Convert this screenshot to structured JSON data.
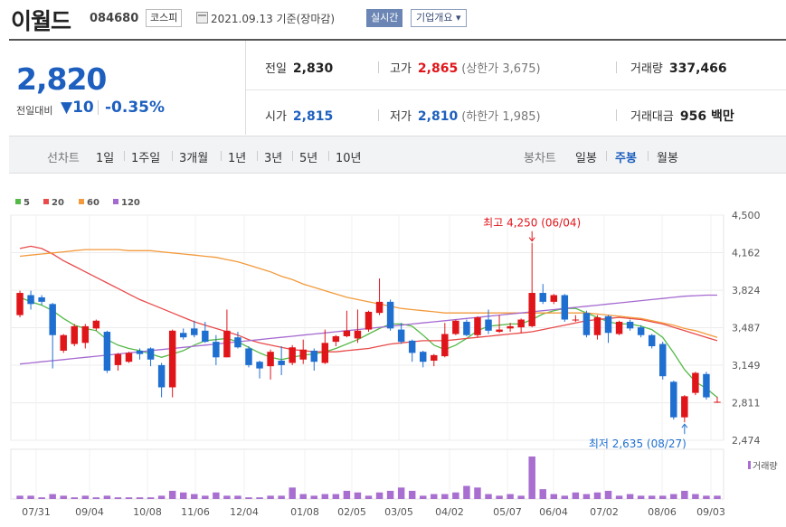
{
  "header": {
    "name": "이월드",
    "code": "084680",
    "market": "코스피",
    "date": "2021.09.13",
    "date_suffix": "기준(장마감)",
    "realtime": "실시간",
    "company_info": "기업개요 ▾"
  },
  "quote": {
    "price": "2,820",
    "diff_label": "전일대비",
    "diff_value": "▼10",
    "diff_pct": "-0.35%",
    "prev_label": "전일",
    "prev_value": "2,830",
    "high_label": "고가",
    "high_value": "2,865",
    "upper_label": "(상한가",
    "upper_value": "3,675)",
    "volume_label": "거래량",
    "volume_value": "337,466",
    "open_label": "시가",
    "open_value": "2,815",
    "low_label": "저가",
    "low_value": "2,810",
    "lower_label": "(하한가",
    "lower_value": "1,985)",
    "amount_label": "거래대금",
    "amount_value": "956 백만"
  },
  "tabs": {
    "line_chart": "선차트",
    "periods": [
      "1일",
      "1주일",
      "3개월",
      "1년",
      "3년",
      "5년",
      "10년"
    ],
    "candle_chart": "봉차트",
    "candle_periods": [
      "일봉",
      "주봉",
      "월봉"
    ],
    "active_candle": "주봉"
  },
  "chart_data": {
    "type": "candlestick",
    "legend": [
      {
        "name": "5",
        "color": "#55b947"
      },
      {
        "name": "20",
        "color": "#e94b4b"
      },
      {
        "name": "60",
        "color": "#f39a3c"
      },
      {
        "name": "120",
        "color": "#a56ad0"
      }
    ],
    "y_ticks": [
      "4,500",
      "4,162",
      "3,824",
      "3,487",
      "3,149",
      "2,811",
      "2,474"
    ],
    "ylim": [
      2474,
      4500
    ],
    "x_labels": [
      "07/31",
      "09/04",
      "10/08",
      "11/06",
      "12/04",
      "01/08",
      "02/05",
      "03/05",
      "04/02",
      "05/07",
      "06/04",
      "07/02",
      "08/06",
      "09/03"
    ],
    "annotation_high": "최고 4,250 (06/04)",
    "annotation_low": "최저 2,635 (08/27)",
    "volume_label": "거래량",
    "candles": [
      {
        "o": 3600,
        "c": 3800,
        "h": 3820,
        "l": 3580
      },
      {
        "o": 3780,
        "c": 3700,
        "h": 3820,
        "l": 3650
      },
      {
        "o": 3760,
        "c": 3720,
        "h": 3780,
        "l": 3690
      },
      {
        "o": 3700,
        "c": 3420,
        "h": 3710,
        "l": 3120
      },
      {
        "o": 3280,
        "c": 3420,
        "h": 3430,
        "l": 3260
      },
      {
        "o": 3340,
        "c": 3500,
        "h": 3520,
        "l": 3320
      },
      {
        "o": 3350,
        "c": 3500,
        "h": 3520,
        "l": 3300
      },
      {
        "o": 3480,
        "c": 3550,
        "h": 3560,
        "l": 3460
      },
      {
        "o": 3450,
        "c": 3100,
        "h": 3460,
        "l": 3080
      },
      {
        "o": 3150,
        "c": 3250,
        "h": 3260,
        "l": 3100
      },
      {
        "o": 3180,
        "c": 3260,
        "h": 3270,
        "l": 3170
      },
      {
        "o": 3280,
        "c": 3250,
        "h": 3300,
        "l": 3200
      },
      {
        "o": 3300,
        "c": 3200,
        "h": 3310,
        "l": 3140
      },
      {
        "o": 3150,
        "c": 2950,
        "h": 3170,
        "l": 2860
      },
      {
        "o": 2950,
        "c": 3460,
        "h": 3470,
        "l": 2860
      },
      {
        "o": 3440,
        "c": 3400,
        "h": 3480,
        "l": 3380
      },
      {
        "o": 3480,
        "c": 3420,
        "h": 3550,
        "l": 3400
      },
      {
        "o": 3460,
        "c": 3360,
        "h": 3540,
        "l": 3350
      },
      {
        "o": 3360,
        "c": 3220,
        "h": 3420,
        "l": 3150
      },
      {
        "o": 3220,
        "c": 3460,
        "h": 3650,
        "l": 3220
      },
      {
        "o": 3400,
        "c": 3310,
        "h": 3450,
        "l": 3300
      },
      {
        "o": 3300,
        "c": 3150,
        "h": 3320,
        "l": 3130
      },
      {
        "o": 3180,
        "c": 3120,
        "h": 3190,
        "l": 3030
      },
      {
        "o": 3140,
        "c": 3270,
        "h": 3290,
        "l": 3020
      },
      {
        "o": 3190,
        "c": 3150,
        "h": 3320,
        "l": 3060
      },
      {
        "o": 3170,
        "c": 3310,
        "h": 3330,
        "l": 3150
      },
      {
        "o": 3200,
        "c": 3290,
        "h": 3380,
        "l": 3160
      },
      {
        "o": 3280,
        "c": 3180,
        "h": 3300,
        "l": 3100
      },
      {
        "o": 3170,
        "c": 3350,
        "h": 3470,
        "l": 3160
      },
      {
        "o": 3360,
        "c": 3410,
        "h": 3420,
        "l": 3320
      },
      {
        "o": 3410,
        "c": 3460,
        "h": 3640,
        "l": 3400
      },
      {
        "o": 3390,
        "c": 3460,
        "h": 3650,
        "l": 3350
      },
      {
        "o": 3470,
        "c": 3630,
        "h": 3640,
        "l": 3450
      },
      {
        "o": 3620,
        "c": 3720,
        "h": 3930,
        "l": 3600
      },
      {
        "o": 3720,
        "c": 3480,
        "h": 3740,
        "l": 3460
      },
      {
        "o": 3470,
        "c": 3360,
        "h": 3530,
        "l": 3340
      },
      {
        "o": 3370,
        "c": 3260,
        "h": 3380,
        "l": 3180
      },
      {
        "o": 3270,
        "c": 3180,
        "h": 3280,
        "l": 3130
      },
      {
        "o": 3190,
        "c": 3240,
        "h": 3250,
        "l": 3140
      },
      {
        "o": 3230,
        "c": 3430,
        "h": 3530,
        "l": 3220
      },
      {
        "o": 3430,
        "c": 3550,
        "h": 3560,
        "l": 3420
      },
      {
        "o": 3540,
        "c": 3420,
        "h": 3560,
        "l": 3410
      },
      {
        "o": 3420,
        "c": 3580,
        "h": 3590,
        "l": 3400
      },
      {
        "o": 3560,
        "c": 3460,
        "h": 3650,
        "l": 3430
      },
      {
        "o": 3450,
        "c": 3470,
        "h": 3600,
        "l": 3440
      },
      {
        "o": 3480,
        "c": 3500,
        "h": 3530,
        "l": 3450
      },
      {
        "o": 3490,
        "c": 3560,
        "h": 3570,
        "l": 3440
      },
      {
        "o": 3500,
        "c": 3800,
        "h": 4250,
        "l": 3490
      },
      {
        "o": 3800,
        "c": 3720,
        "h": 3880,
        "l": 3700
      },
      {
        "o": 3720,
        "c": 3780,
        "h": 3790,
        "l": 3700
      },
      {
        "o": 3780,
        "c": 3560,
        "h": 3790,
        "l": 3540
      },
      {
        "o": 3560,
        "c": 3560,
        "h": 3600,
        "l": 3540
      },
      {
        "o": 3620,
        "c": 3420,
        "h": 3640,
        "l": 3400
      },
      {
        "o": 3420,
        "c": 3580,
        "h": 3600,
        "l": 3380
      },
      {
        "o": 3590,
        "c": 3440,
        "h": 3600,
        "l": 3350
      },
      {
        "o": 3430,
        "c": 3540,
        "h": 3550,
        "l": 3420
      },
      {
        "o": 3540,
        "c": 3480,
        "h": 3560,
        "l": 3460
      },
      {
        "o": 3490,
        "c": 3420,
        "h": 3510,
        "l": 3400
      },
      {
        "o": 3420,
        "c": 3320,
        "h": 3430,
        "l": 3300
      },
      {
        "o": 3340,
        "c": 3050,
        "h": 3360,
        "l": 3020
      },
      {
        "o": 3000,
        "c": 2680,
        "h": 3010,
        "l": 2660
      },
      {
        "o": 2680,
        "c": 2870,
        "h": 2880,
        "l": 2635
      },
      {
        "o": 2900,
        "c": 3080,
        "h": 3090,
        "l": 2880
      },
      {
        "o": 3070,
        "c": 2860,
        "h": 3090,
        "l": 2840
      },
      {
        "o": 2815,
        "c": 2820,
        "h": 2865,
        "l": 2810
      }
    ],
    "volumes": [
      2,
      2,
      1,
      3,
      2,
      1,
      2,
      1,
      2,
      1,
      1,
      1,
      1,
      2,
      5,
      4,
      3,
      2,
      4,
      2,
      2,
      1,
      1,
      2,
      2,
      7,
      3,
      2,
      3,
      3,
      5,
      4,
      2,
      4,
      5,
      7,
      5,
      2,
      3,
      3,
      4,
      8,
      7,
      3,
      2,
      3,
      2,
      26,
      6,
      3,
      2,
      4,
      3,
      4,
      5,
      2,
      3,
      2,
      2,
      2,
      3,
      5,
      3,
      2,
      2
    ],
    "ma5": [
      3760,
      3720,
      3690,
      3640,
      3570,
      3510,
      3480,
      3460,
      3380,
      3330,
      3300,
      3280,
      3250,
      3220,
      3250,
      3280,
      3330,
      3370,
      3380,
      3390,
      3360,
      3310,
      3260,
      3220,
      3200,
      3220,
      3240,
      3250,
      3270,
      3300,
      3340,
      3380,
      3430,
      3480,
      3520,
      3520,
      3500,
      3420,
      3330,
      3290,
      3330,
      3390,
      3460,
      3500,
      3510,
      3520,
      3520,
      3560,
      3610,
      3640,
      3660,
      3660,
      3620,
      3580,
      3540,
      3520,
      3520,
      3500,
      3470,
      3400,
      3260,
      3110,
      3000,
      2940,
      2860
    ],
    "ma20": [
      4200,
      4220,
      4200,
      4150,
      4090,
      4040,
      3990,
      3940,
      3890,
      3840,
      3790,
      3740,
      3700,
      3660,
      3620,
      3580,
      3540,
      3510,
      3480,
      3450,
      3420,
      3380,
      3350,
      3330,
      3310,
      3290,
      3280,
      3270,
      3270,
      3270,
      3280,
      3290,
      3300,
      3320,
      3340,
      3350,
      3360,
      3370,
      3370,
      3370,
      3380,
      3390,
      3400,
      3410,
      3420,
      3430,
      3440,
      3450,
      3470,
      3490,
      3510,
      3530,
      3550,
      3560,
      3570,
      3580,
      3570,
      3560,
      3540,
      3520,
      3490,
      3460,
      3430,
      3400,
      3370
    ],
    "ma60": [
      4130,
      4140,
      4150,
      4160,
      4170,
      4180,
      4190,
      4190,
      4190,
      4190,
      4180,
      4180,
      4180,
      4170,
      4160,
      4150,
      4140,
      4130,
      4120,
      4100,
      4080,
      4050,
      4020,
      3990,
      3950,
      3920,
      3880,
      3850,
      3820,
      3790,
      3760,
      3740,
      3720,
      3700,
      3680,
      3660,
      3650,
      3640,
      3630,
      3620,
      3620,
      3620,
      3620,
      3620,
      3620,
      3620,
      3620,
      3620,
      3620,
      3620,
      3620,
      3620,
      3620,
      3610,
      3600,
      3590,
      3580,
      3570,
      3550,
      3530,
      3510,
      3480,
      3460,
      3430,
      3400
    ],
    "ma120": [
      3160,
      3170,
      3180,
      3190,
      3200,
      3210,
      3220,
      3230,
      3240,
      3250,
      3260,
      3270,
      3280,
      3290,
      3300,
      3310,
      3320,
      3330,
      3340,
      3350,
      3360,
      3370,
      3380,
      3390,
      3400,
      3410,
      3420,
      3430,
      3440,
      3450,
      3460,
      3470,
      3480,
      3490,
      3500,
      3510,
      3520,
      3530,
      3540,
      3550,
      3560,
      3570,
      3580,
      3590,
      3600,
      3610,
      3620,
      3630,
      3640,
      3650,
      3660,
      3670,
      3680,
      3690,
      3700,
      3710,
      3720,
      3730,
      3740,
      3750,
      3760,
      3770,
      3775,
      3780,
      3780
    ]
  }
}
